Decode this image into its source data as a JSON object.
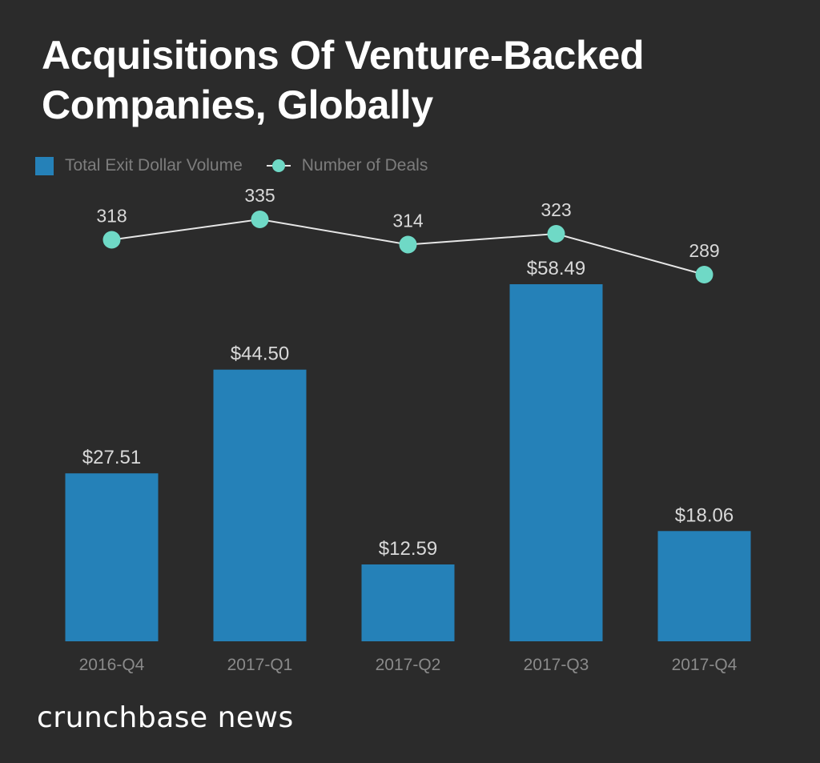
{
  "chart_data": {
    "type": "bar",
    "title": "Acquisitions Of Venture-Backed Companies, Globally",
    "categories": [
      "2016-Q4",
      "2017-Q1",
      "2017-Q2",
      "2017-Q3",
      "2017-Q4"
    ],
    "series": [
      {
        "name": "Total Exit Dollar Volume",
        "type": "bar",
        "values": [
          27.51,
          44.5,
          12.59,
          58.49,
          18.06
        ],
        "labels": [
          "$27.51",
          "$44.50",
          "$12.59",
          "$58.49",
          "$18.06"
        ],
        "color": "#2581b8"
      },
      {
        "name": "Number of Deals",
        "type": "line",
        "values": [
          318,
          335,
          314,
          323,
          289
        ],
        "labels": [
          "318",
          "335",
          "314",
          "323",
          "289"
        ],
        "color": "#6fd9c6"
      }
    ],
    "xlabel": "",
    "ylabel": "",
    "grid": false,
    "legend_position": "top-left"
  },
  "brand": {
    "text": "crunchbase news"
  },
  "colors": {
    "background": "#2b2b2b",
    "bar": "#2581b8",
    "line_marker": "#6fd9c6",
    "line": "#e6e6e6",
    "label": "#d9d9d9",
    "axis_label": "#8a8a8a"
  }
}
